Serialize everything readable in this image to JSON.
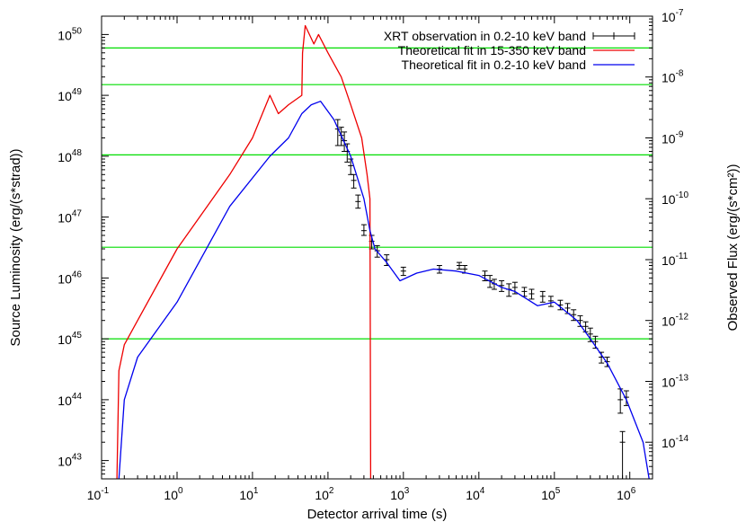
{
  "chart_data": {
    "type": "line",
    "title": "",
    "xlabel": "Detector arrival time (s)",
    "ylabel": "Source Luminosity (erg/(s*strad))",
    "y2label": "Observed Flux (erg/(s*cm²))",
    "xscale": "log",
    "yscale": "log",
    "xlim": [
      0.1,
      2000000
    ],
    "ylim": [
      5e+42,
      2e+50
    ],
    "y2lim": [
      2.5e-15,
      1e-07
    ],
    "x_ticks": [
      {
        "value": 0.1,
        "base": "10",
        "exp": "-1"
      },
      {
        "value": 1,
        "base": "10",
        "exp": "0"
      },
      {
        "value": 10,
        "base": "10",
        "exp": "1"
      },
      {
        "value": 100,
        "base": "10",
        "exp": "2"
      },
      {
        "value": 1000,
        "base": "10",
        "exp": "3"
      },
      {
        "value": 10000,
        "base": "10",
        "exp": "4"
      },
      {
        "value": 100000,
        "base": "10",
        "exp": "5"
      },
      {
        "value": 1000000,
        "base": "10",
        "exp": "6"
      }
    ],
    "y_ticks": [
      {
        "value": 1e+43,
        "base": "10",
        "exp": "43"
      },
      {
        "value": 1e+44,
        "base": "10",
        "exp": "44"
      },
      {
        "value": 1e+45,
        "base": "10",
        "exp": "45"
      },
      {
        "value": 1e+46,
        "base": "10",
        "exp": "46"
      },
      {
        "value": 1e+47,
        "base": "10",
        "exp": "47"
      },
      {
        "value": 1e+48,
        "base": "10",
        "exp": "48"
      },
      {
        "value": 1e+49,
        "base": "10",
        "exp": "49"
      },
      {
        "value": 1e+50,
        "base": "10",
        "exp": "50"
      }
    ],
    "y2_ticks": [
      {
        "value": 1e-14,
        "base": "10",
        "exp": "-14"
      },
      {
        "value": 1e-13,
        "base": "10",
        "exp": "-13"
      },
      {
        "value": 1e-12,
        "base": "10",
        "exp": "-12"
      },
      {
        "value": 1e-11,
        "base": "10",
        "exp": "-11"
      },
      {
        "value": 1e-10,
        "base": "10",
        "exp": "-10"
      },
      {
        "value": 1e-09,
        "base": "10",
        "exp": "-9"
      },
      {
        "value": 1e-08,
        "base": "10",
        "exp": "-8"
      },
      {
        "value": 1e-07,
        "base": "10",
        "exp": "-7"
      }
    ],
    "hlines": [
      6e+49,
      1.5e+49,
      1.05e+48,
      3.2e+46,
      1e+45
    ],
    "hline_color": "#00dd00",
    "legend_position": "top-right",
    "series": [
      {
        "name": "XRT observation in 0.2-10 keV band",
        "kind": "errorbars",
        "color": "#000000",
        "points": [
          [
            135,
            2.8e+48,
            1.5e+48,
            4e+48
          ],
          [
            150,
            2.2e+48,
            1.5e+48,
            3e+48
          ],
          [
            165,
            1.8e+48,
            1.2e+48,
            2.5e+48
          ],
          [
            180,
            1.2e+48,
            8e+47,
            1.6e+48
          ],
          [
            200,
            7e+47,
            5e+47,
            9e+47
          ],
          [
            220,
            4e+47,
            3e+47,
            5e+47
          ],
          [
            250,
            1.8e+47,
            1.4e+47,
            2.3e+47
          ],
          [
            300,
            6e+46,
            5e+46,
            7.5e+46
          ],
          [
            380,
            4e+46,
            3e+46,
            5e+46
          ],
          [
            450,
            2.8e+46,
            2.2e+46,
            3.4e+46
          ],
          [
            600,
            2e+46,
            1.6e+46,
            2.4e+46
          ],
          [
            1000,
            1.3e+46,
            1.1e+46,
            1.5e+46
          ],
          [
            3000,
            1.4e+46,
            1.2e+46,
            1.6e+46
          ],
          [
            5500,
            1.6e+46,
            1.4e+46,
            1.8e+46
          ],
          [
            6500,
            1.4e+46,
            1.2e+46,
            1.6e+46
          ],
          [
            12000,
            1.1e+46,
            9e+45,
            1.3e+46
          ],
          [
            14000,
            9e+45,
            7e+45,
            1.1e+46
          ],
          [
            16000,
            8e+45,
            6.5e+45,
            9.5e+45
          ],
          [
            20000,
            7.5e+45,
            6e+45,
            9e+45
          ],
          [
            25000,
            6.5e+45,
            5e+45,
            8e+45
          ],
          [
            30000,
            7e+45,
            5.5e+45,
            8.5e+45
          ],
          [
            40000,
            6e+45,
            5e+45,
            7e+45
          ],
          [
            50000,
            5.5e+45,
            4.5e+45,
            6.5e+45
          ],
          [
            70000,
            5e+45,
            4e+45,
            6e+45
          ],
          [
            90000,
            4.2e+45,
            3.4e+45,
            5e+45
          ],
          [
            120000,
            3.6e+45,
            3e+45,
            4.3e+45
          ],
          [
            150000,
            3.2e+45,
            2.6e+45,
            3.8e+45
          ],
          [
            180000,
            2.5e+45,
            2e+45,
            3e+45
          ],
          [
            220000,
            2e+45,
            1.6e+45,
            2.4e+45
          ],
          [
            260000,
            1.6e+45,
            1.3e+45,
            1.9e+45
          ],
          [
            300000,
            1.2e+45,
            9e+44,
            1.5e+45
          ],
          [
            350000,
            9e+44,
            7e+44,
            1.1e+45
          ],
          [
            420000,
            5e+44,
            4e+44,
            6e+44
          ],
          [
            500000,
            4.2e+44,
            3.5e+44,
            5e+44
          ],
          [
            750000,
            1e+44,
            6e+43,
            1.5e+44
          ],
          [
            800000,
            2e+43,
            5e+42,
            3e+43
          ],
          [
            900000,
            1.1e+44,
            8e+43,
            1.4e+44
          ]
        ]
      },
      {
        "name": "Theoretical fit in 15-350 keV band",
        "kind": "line",
        "color": "#ee0000",
        "points": [
          [
            0.16,
            5e+42
          ],
          [
            0.17,
            3e+44
          ],
          [
            0.2,
            8e+44
          ],
          [
            0.3,
            2e+45
          ],
          [
            1,
            3e+46
          ],
          [
            5,
            5e+47
          ],
          [
            10,
            2e+48
          ],
          [
            17,
            1e+49
          ],
          [
            22,
            5e+48
          ],
          [
            30,
            7e+48
          ],
          [
            45,
            1e+49
          ],
          [
            46,
            5e+49
          ],
          [
            50,
            1.4e+50
          ],
          [
            65,
            7e+49
          ],
          [
            75,
            1e+50
          ],
          [
            100,
            5e+49
          ],
          [
            150,
            2e+49
          ],
          [
            200,
            7e+48
          ],
          [
            280,
            2e+48
          ],
          [
            330,
            5e+47
          ],
          [
            360,
            2e+47
          ],
          [
            368,
            5e+42
          ]
        ]
      },
      {
        "name": "Theoretical fit in 0.2-10 keV band",
        "kind": "line",
        "color": "#0000ee",
        "points": [
          [
            0.17,
            5e+42
          ],
          [
            0.2,
            1e+44
          ],
          [
            0.3,
            5e+44
          ],
          [
            1,
            4e+45
          ],
          [
            5,
            1.5e+47
          ],
          [
            17,
            1e+48
          ],
          [
            30,
            2e+48
          ],
          [
            45,
            5e+48
          ],
          [
            60,
            7e+48
          ],
          [
            80,
            8e+48
          ],
          [
            120,
            4e+48
          ],
          [
            200,
            1e+48
          ],
          [
            300,
            2e+47
          ],
          [
            360,
            6e+46
          ],
          [
            420,
            3e+46
          ],
          [
            600,
            1.8e+46
          ],
          [
            900,
            9e+45
          ],
          [
            1500,
            1.2e+46
          ],
          [
            2500,
            1.4e+46
          ],
          [
            5000,
            1.3e+46
          ],
          [
            10000,
            1.1e+46
          ],
          [
            20000,
            7e+45
          ],
          [
            30000,
            6e+45
          ],
          [
            60000,
            3.5e+45
          ],
          [
            100000,
            4e+45
          ],
          [
            200000,
            2e+45
          ],
          [
            300000,
            1e+45
          ],
          [
            500000,
            4e+44
          ],
          [
            900000,
            1e+44
          ],
          [
            1500000,
            2e+43
          ],
          [
            1800000,
            5e+42
          ]
        ]
      }
    ]
  }
}
